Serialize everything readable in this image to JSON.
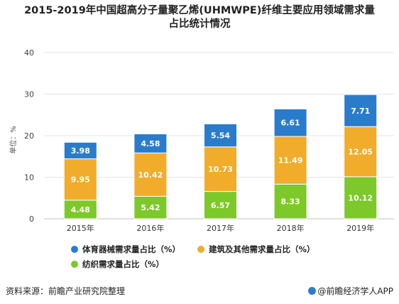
{
  "chart_data": {
    "type": "bar",
    "stacked": true,
    "title": "2015-2019年中国超高分子量聚乙烯(UHMWPE)纤维主要应用领域需求量占比统计情况",
    "title_lines": [
      "2015-2019年中国超高分子量聚乙烯(UHMWPE)纤维主要应用领域需求量",
      "占比统计情况"
    ],
    "ylabel": "单位：%",
    "xlabel": "",
    "ylim": [
      0,
      40
    ],
    "yticks": [
      "0",
      "10",
      "20",
      "30",
      "40"
    ],
    "grid": true,
    "legend_position": "bottom",
    "categories": [
      "2015年",
      "2016年",
      "2017年",
      "2018年",
      "2019年"
    ],
    "series": [
      {
        "name": "纺织需求量占比（%）",
        "color": "#7dc82a",
        "values": [
          4.48,
          5.42,
          6.57,
          8.33,
          10.12
        ]
      },
      {
        "name": "建筑及其他需求量占比（%）",
        "color": "#f0ac2a",
        "values": [
          9.95,
          10.42,
          10.73,
          11.49,
          12.05
        ]
      },
      {
        "name": "体育器械需求量占比（%）",
        "color": "#2a7ccb",
        "values": [
          3.98,
          4.58,
          5.54,
          6.61,
          7.71
        ]
      }
    ],
    "value_labels": [
      [
        "4.48",
        "5.42",
        "6.57",
        "8.33",
        "10.12"
      ],
      [
        "9.95",
        "10.42",
        "10.73",
        "11.49",
        "12.05"
      ],
      [
        "3.98",
        "4.58",
        "5.54",
        "6.61",
        "7.71"
      ]
    ],
    "legend_order": [
      2,
      1,
      0
    ]
  },
  "footer": {
    "source": "资料来源：前瞻产业研究院整理",
    "brand": "@前瞻经济学人APP"
  }
}
